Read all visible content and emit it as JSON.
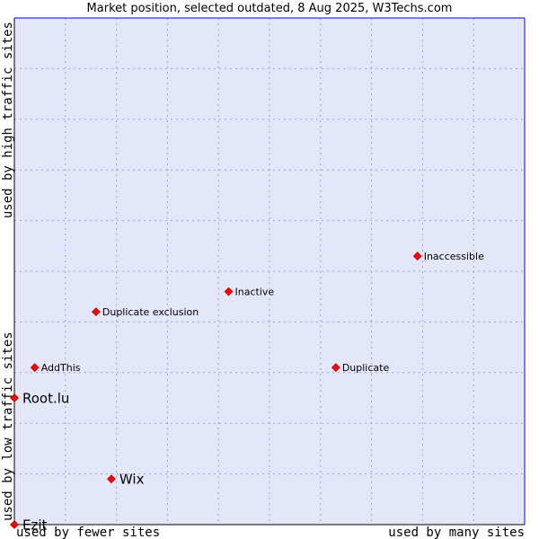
{
  "title": "Market position, selected outdated, 8 Aug 2025, W3Techs.com",
  "chart_data": {
    "type": "scatter",
    "title": "Market position, selected outdated, 8 Aug 2025, W3Techs.com",
    "x_axis": {
      "label_low": "used by fewer sites",
      "label_high": "used by many sites",
      "range": [
        0,
        10
      ]
    },
    "y_axis": {
      "label_low": "used by low traffic sites",
      "label_high": "used by high traffic sites",
      "range": [
        0,
        10
      ]
    },
    "grid": true,
    "colors": {
      "plot_bg": "#e4e6fa",
      "grid": "#a0a0c8",
      "border": "#0000ff",
      "marker": "#ff0000"
    },
    "points": [
      {
        "label": "Inaccessible",
        "x": 7.9,
        "y": 5.3,
        "emphasis": false
      },
      {
        "label": "Inactive",
        "x": 4.2,
        "y": 4.6,
        "emphasis": false
      },
      {
        "label": "Duplicate exclusion",
        "x": 1.6,
        "y": 4.2,
        "emphasis": false
      },
      {
        "label": "AddThis",
        "x": 0.4,
        "y": 3.1,
        "emphasis": false
      },
      {
        "label": "Duplicate",
        "x": 6.3,
        "y": 3.1,
        "emphasis": false
      },
      {
        "label": "Root.lu",
        "x": 0.0,
        "y": 2.5,
        "emphasis": true
      },
      {
        "label": "Wix",
        "x": 1.9,
        "y": 0.9,
        "emphasis": true
      },
      {
        "label": "Ezit",
        "x": 0.0,
        "y": 0.0,
        "emphasis": true
      }
    ]
  }
}
